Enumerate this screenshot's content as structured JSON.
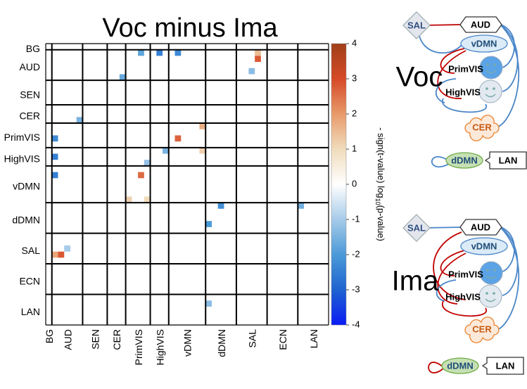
{
  "chart_data": {
    "type": "matrix",
    "title": "Voc minus Ima",
    "networks": [
      "BG",
      "AUD",
      "SEN",
      "CER",
      "PrimVIS",
      "HighVIS",
      "vDMN",
      "dDMN",
      "SAL",
      "ECN",
      "LAN"
    ],
    "boundaries": [
      0,
      1,
      6,
      10,
      13,
      17,
      20,
      26,
      31,
      36,
      41,
      46
    ],
    "cells": [
      {
        "row": 1,
        "col": 15,
        "value": -1.8
      },
      {
        "row": 1,
        "col": 18,
        "value": -2.5
      },
      {
        "row": 1,
        "col": 21,
        "value": -2.3
      },
      {
        "row": 1,
        "col": 34,
        "value": 1.5
      },
      {
        "row": 2,
        "col": 34,
        "value": 2.8
      },
      {
        "row": 4,
        "col": 33,
        "value": -1.3
      },
      {
        "row": 5,
        "col": 12,
        "value": -1.7
      },
      {
        "row": 12,
        "col": 5,
        "value": -1.5
      },
      {
        "row": 13,
        "col": 25,
        "value": 1.7
      },
      {
        "row": 15,
        "col": 1,
        "value": -2.3
      },
      {
        "row": 15,
        "col": 21,
        "value": 2.7
      },
      {
        "row": 17,
        "col": 25,
        "value": 1.2
      },
      {
        "row": 17,
        "col": 19,
        "value": -1.5
      },
      {
        "row": 18,
        "col": 1,
        "value": -2.5
      },
      {
        "row": 19,
        "col": 16,
        "value": -1.2
      },
      {
        "row": 21,
        "col": 1,
        "value": -2.5
      },
      {
        "row": 21,
        "col": 15,
        "value": 2.6
      },
      {
        "row": 25,
        "col": 13,
        "value": 1.2
      },
      {
        "row": 25,
        "col": 16,
        "value": 1.0
      },
      {
        "row": 26,
        "col": 28,
        "value": -2.2
      },
      {
        "row": 26,
        "col": 41,
        "value": -1.6
      },
      {
        "row": 29,
        "col": 26,
        "value": -2.0
      },
      {
        "row": 33,
        "col": 3,
        "value": -1.0
      },
      {
        "row": 34,
        "col": 1,
        "value": 1.8
      },
      {
        "row": 34,
        "col": 2,
        "value": 2.8
      },
      {
        "row": 42,
        "col": 26,
        "value": -1.3
      }
    ],
    "colorbar": {
      "label_parts": [
        "- sign(t-value) log",
        "10",
        "(p-value)"
      ],
      "lim": [
        -4,
        4
      ],
      "ticks": [
        -4,
        -3,
        -2,
        -1,
        0,
        1,
        2,
        3,
        4
      ],
      "colormap": [
        "#0a1cf5",
        "#1f63d0",
        "#4b9ad8",
        "#a7cbe9",
        "#ffffff",
        "#f0dcbc",
        "#e89a6a",
        "#d64a28",
        "#a0401a"
      ]
    }
  },
  "diagrams": [
    {
      "title": "Voc",
      "nodes": [
        "SAL",
        "AUD",
        "vDMN",
        "PrimVIS",
        "HighVIS",
        "CER",
        "dDMN",
        "LAN"
      ]
    },
    {
      "title": "Ima",
      "nodes": [
        "SAL",
        "AUD",
        "vDMN",
        "PrimVIS",
        "HighVIS",
        "CER",
        "dDMN",
        "LAN"
      ]
    }
  ]
}
